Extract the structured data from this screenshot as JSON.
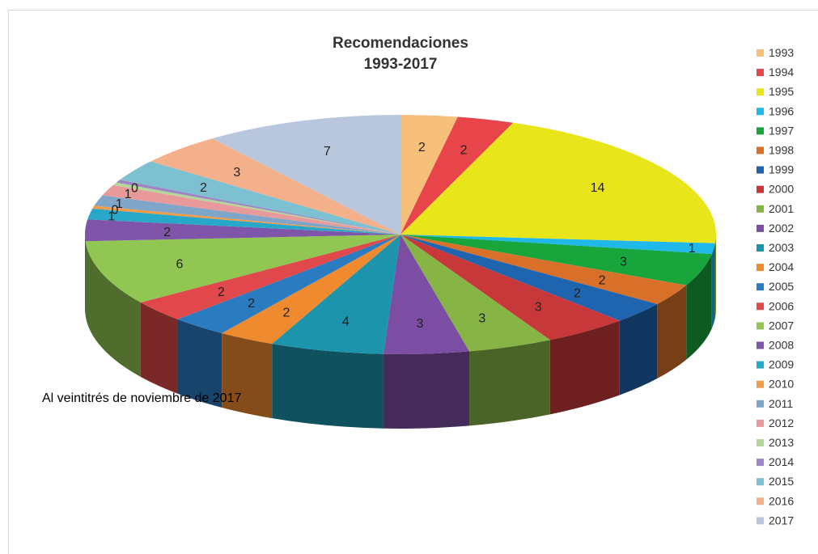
{
  "caption": "Al veintitrés de noviembre de 2017",
  "chart_data": {
    "type": "pie",
    "title": [
      "Recomendaciones",
      "1993-2017"
    ],
    "legend_position": "right",
    "categories": [
      "1993",
      "1994",
      "1995",
      "1996",
      "1997",
      "1998",
      "1999",
      "2000",
      "2001",
      "2002",
      "2003",
      "2004",
      "2005",
      "2006",
      "2007",
      "2008",
      "2009",
      "2010",
      "2011",
      "2012",
      "2013",
      "2014",
      "2015",
      "2016",
      "2017"
    ],
    "values": [
      2,
      2,
      14,
      1,
      3,
      2,
      2,
      3,
      3,
      3,
      4,
      2,
      2,
      2,
      6,
      2,
      1,
      0,
      1,
      1,
      0,
      0,
      2,
      3,
      7
    ],
    "value_labels": [
      "2",
      "2",
      "14",
      "1",
      "3",
      "2",
      "2",
      "3",
      "3",
      "3",
      "4",
      "2",
      "2",
      "2",
      "6",
      "2",
      "1",
      "0",
      "1",
      "1",
      "0",
      "",
      "2",
      "3",
      "7"
    ],
    "colors": [
      "#f7c07a",
      "#e8454b",
      "#e8e61b",
      "#1fb8e8",
      "#18a63c",
      "#d9702a",
      "#1e64ae",
      "#c8383a",
      "#86b445",
      "#7b4ea3",
      "#1b94ac",
      "#f08a2f",
      "#2a7bc0",
      "#e0484b",
      "#92c653",
      "#7e55a8",
      "#28a8c8",
      "#f39a48",
      "#7fa6c8",
      "#e8999a",
      "#b3d69a",
      "#9e86c4",
      "#7cc0d2",
      "#f4b08a",
      "#b8c7de"
    ],
    "start_angle_deg": -90
  }
}
